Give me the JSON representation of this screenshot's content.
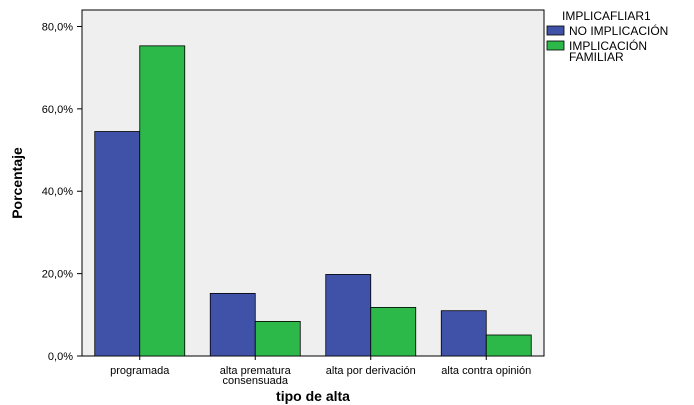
{
  "chart_data": {
    "type": "bar",
    "title": "",
    "xlabel": "tipo de alta",
    "ylabel": "Porcentaje",
    "categories": [
      [
        "programada"
      ],
      [
        "alta prematura",
        "consensuada"
      ],
      [
        "alta por derivación"
      ],
      [
        "alta contra opinión"
      ]
    ],
    "series": [
      {
        "name": "NO IMPLICACIÓN",
        "legend_lines": [
          "NO IMPLICACIÓN"
        ],
        "color": "#3f52a8",
        "values": [
          54.5,
          15.2,
          19.8,
          11.0
        ]
      },
      {
        "name": "IMPLICACIÓN FAMILIAR",
        "legend_lines": [
          "IMPLICACIÓN",
          "FAMILIAR"
        ],
        "color": "#2db84a",
        "values": [
          75.3,
          8.4,
          11.8,
          5.1
        ]
      }
    ],
    "ylim": [
      0,
      80
    ],
    "yticks": [
      "0,0%",
      "20,0%",
      "40,0%",
      "60,0%",
      "80,0%"
    ],
    "ytick_values": [
      0,
      20,
      40,
      60,
      80
    ],
    "legend": {
      "title": "IMPLICAFLIAR1",
      "position": "top-right"
    },
    "plot_background": "#efefef",
    "grid": false
  }
}
